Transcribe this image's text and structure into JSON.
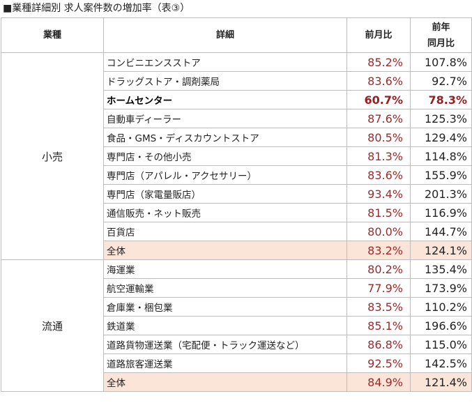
{
  "title": "■業種詳細別 求人案件数の増加率（表③）",
  "headers": {
    "industry": "業種",
    "detail": "詳細",
    "mom": "前月比",
    "yoy_line1": "前年",
    "yoy_line2": "同月比"
  },
  "groups": [
    {
      "category": "小売",
      "rows": [
        {
          "detail": "コンビニエンスストア",
          "mom": "85.2%",
          "yoy": "107.8%"
        },
        {
          "detail": "ドラッグストア・調剤薬局",
          "mom": "83.6%",
          "yoy": "92.7%"
        },
        {
          "detail": "ホームセンター",
          "mom": "60.7%",
          "yoy": "78.3%",
          "highlight": true
        },
        {
          "detail": "自動車ディーラー",
          "mom": "87.6%",
          "yoy": "125.3%"
        },
        {
          "detail": "食品・GMS・ディスカウントストア",
          "mom": "80.5%",
          "yoy": "129.4%"
        },
        {
          "detail": "専門店・その他小売",
          "mom": "81.3%",
          "yoy": "114.8%"
        },
        {
          "detail": "専門店（アパレル・アクセサリー）",
          "mom": "83.6%",
          "yoy": "155.9%"
        },
        {
          "detail": "専門店（家電量販店）",
          "mom": "93.4%",
          "yoy": "201.3%"
        },
        {
          "detail": "通信販売・ネット販売",
          "mom": "81.5%",
          "yoy": "116.9%"
        },
        {
          "detail": "百貨店",
          "mom": "80.0%",
          "yoy": "144.7%"
        },
        {
          "detail": "全体",
          "mom": "83.2%",
          "yoy": "124.1%",
          "total": true
        }
      ]
    },
    {
      "category": "流通",
      "rows": [
        {
          "detail": "海運業",
          "mom": "80.2%",
          "yoy": "135.4%"
        },
        {
          "detail": "航空運輸業",
          "mom": "77.9%",
          "yoy": "173.9%"
        },
        {
          "detail": "倉庫業・梱包業",
          "mom": "83.5%",
          "yoy": "110.2%"
        },
        {
          "detail": "鉄道業",
          "mom": "85.1%",
          "yoy": "196.6%"
        },
        {
          "detail": "道路貨物運送業（宅配便・トラック運送など）",
          "mom": "86.8%",
          "yoy": "115.0%"
        },
        {
          "detail": "道路旅客運送業",
          "mom": "92.5%",
          "yoy": "142.5%"
        },
        {
          "detail": "全体",
          "mom": "84.9%",
          "yoy": "121.4%",
          "total": true
        }
      ]
    }
  ]
}
